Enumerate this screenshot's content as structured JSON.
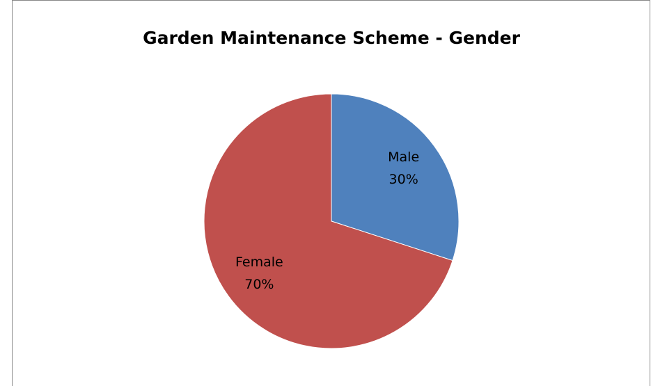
{
  "chart_data": {
    "type": "pie",
    "title": "Garden Maintenance Scheme - Gender",
    "categories": [
      "Male",
      "Female"
    ],
    "values": [
      30,
      70
    ],
    "value_labels": [
      "30%",
      "70%"
    ],
    "colors": [
      "#4f81bd",
      "#c0504d"
    ],
    "start_angle": 0,
    "direction": "clockwise"
  }
}
